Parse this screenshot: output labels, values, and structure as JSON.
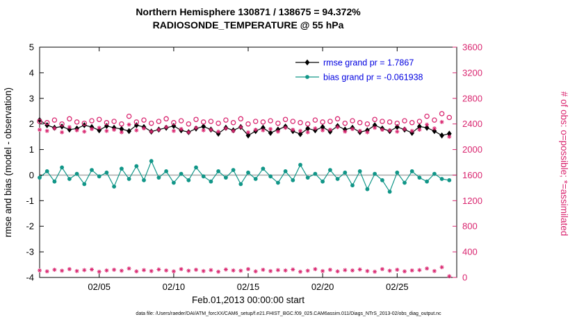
{
  "figure": {
    "title_line1": "Northern Hemisphere 130871 / 138675 = 94.372%",
    "title_line2": "RADIOSONDE_TEMPERATURE @ 55 hPa",
    "footer": "data file: /Users/raeder/DAI/ATM_forcXX/CAM6_setup/f.e21.FHIST_BGC.f09_025.CAM6assim.011/Diags_NTrS_2013-02/obs_diag_output.nc"
  },
  "colors": {
    "rmse": "#000000",
    "bias": "#119688",
    "obs": "#d9256f",
    "legend_text": "#0000e0",
    "zero_line": "#b0b0b0",
    "axis": "#000000"
  },
  "chart_data": {
    "type": "line",
    "title": "Northern Hemisphere 130871 / 138675 = 94.372% | RADIOSONDE_TEMPERATURE @ 55 hPa",
    "xlabel": "Feb.01,2013 00:00:00 start",
    "ylabel_left": "rmse and bias (model - observation)",
    "ylabel_right": "# of obs: o=possible; *=assimilated",
    "ylim_left": [
      -4,
      5
    ],
    "yticks_left": [
      -4,
      -3,
      -2,
      -1,
      0,
      1,
      2,
      3,
      4,
      5
    ],
    "ylim_right": [
      0,
      3600
    ],
    "yticks_right": [
      0,
      400,
      800,
      1200,
      1600,
      2000,
      2400,
      2800,
      3200,
      3600
    ],
    "xlim_days": [
      1,
      29
    ],
    "xticks": [
      {
        "day": 5,
        "label": "02/05"
      },
      {
        "day": 10,
        "label": "02/10"
      },
      {
        "day": 15,
        "label": "02/15"
      },
      {
        "day": 20,
        "label": "02/20"
      },
      {
        "day": 25,
        "label": "02/25"
      }
    ],
    "grand_rmse": 1.7867,
    "grand_bias": -0.061938,
    "x_days": [
      1,
      1.5,
      2,
      2.5,
      3,
      3.5,
      4,
      4.5,
      5,
      5.5,
      6,
      6.5,
      7,
      7.5,
      8,
      8.5,
      9,
      9.5,
      10,
      10.5,
      11,
      11.5,
      12,
      12.5,
      13,
      13.5,
      14,
      14.5,
      15,
      15.5,
      16,
      16.5,
      17,
      17.5,
      18,
      18.5,
      19,
      19.5,
      20,
      20.5,
      21,
      21.5,
      22,
      22.5,
      23,
      23.5,
      24,
      24.5,
      25,
      25.5,
      26,
      26.5,
      27,
      27.5,
      28,
      28.5
    ],
    "series": [
      {
        "name": "rmse",
        "legend": "rmse grand pr = 1.7867",
        "axis": "left",
        "marker": "diamond",
        "line": true,
        "color": "#000000",
        "values": [
          2.15,
          1.95,
          1.85,
          1.9,
          1.78,
          1.82,
          1.95,
          1.88,
          1.75,
          1.92,
          1.85,
          1.8,
          1.72,
          1.95,
          1.88,
          1.7,
          1.78,
          1.85,
          1.92,
          1.75,
          1.68,
          1.82,
          1.9,
          1.78,
          1.62,
          1.85,
          1.75,
          1.88,
          1.55,
          1.72,
          1.85,
          1.65,
          1.78,
          1.9,
          1.72,
          1.6,
          1.82,
          1.75,
          1.88,
          1.7,
          1.92,
          1.78,
          1.85,
          1.68,
          1.75,
          1.95,
          1.82,
          1.72,
          1.88,
          1.78,
          1.65,
          1.9,
          1.85,
          1.72,
          1.55,
          1.62
        ]
      },
      {
        "name": "bias",
        "legend": "bias grand pr = -0.061938",
        "axis": "left",
        "marker": "circle",
        "line": true,
        "color": "#119688",
        "values": [
          -0.1,
          0.15,
          -0.25,
          0.3,
          -0.15,
          0.05,
          -0.35,
          0.2,
          -0.05,
          0.1,
          -0.45,
          0.25,
          -0.15,
          0.35,
          -0.2,
          0.55,
          -0.1,
          0.15,
          -0.3,
          0.05,
          -0.2,
          0.3,
          -0.05,
          -0.25,
          0.15,
          -0.1,
          0.2,
          -0.35,
          0.1,
          -0.15,
          0.25,
          -0.05,
          -0.3,
          0.15,
          -0.2,
          0.4,
          -0.1,
          0.05,
          -0.25,
          0.2,
          -0.15,
          0.1,
          -0.4,
          0.15,
          -0.55,
          0.05,
          -0.2,
          -0.65,
          0.1,
          -0.3,
          0.15,
          -0.1,
          -0.25,
          0.05,
          -0.15,
          -0.2
        ]
      },
      {
        "name": "obs-possible",
        "axis": "right",
        "marker": "ocircle",
        "line": false,
        "color": "#d9256f",
        "values": [
          2440,
          2420,
          2460,
          2400,
          2480,
          2430,
          2410,
          2450,
          2470,
          2420,
          2440,
          2400,
          2520,
          2430,
          2460,
          2410,
          2440,
          2480,
          2420,
          2450,
          2400,
          2470,
          2430,
          2440,
          2410,
          2460,
          2420,
          2480,
          2400,
          2440,
          2430,
          2450,
          2410,
          2470,
          2440,
          2420,
          2400,
          2460,
          2430,
          2440,
          2480,
          2410,
          2450,
          2420,
          2400,
          2470,
          2440,
          2430,
          2410,
          2450,
          2420,
          2440,
          2520,
          2460,
          2560,
          2500
        ]
      },
      {
        "name": "obs-assimilated",
        "axis": "right",
        "marker": "asterisk",
        "line": false,
        "color": "#d9256f",
        "values": [
          2310,
          2290,
          2330,
          2270,
          2350,
          2300,
          2280,
          2320,
          2340,
          2290,
          2310,
          2270,
          2390,
          2300,
          2330,
          2280,
          2310,
          2350,
          2290,
          2320,
          2270,
          2340,
          2300,
          2310,
          2280,
          2330,
          2290,
          2350,
          2270,
          2310,
          2300,
          2320,
          2280,
          2340,
          2310,
          2290,
          2270,
          2330,
          2300,
          2310,
          2350,
          2280,
          2320,
          2290,
          2270,
          2340,
          2310,
          2300,
          2280,
          2320,
          2290,
          2310,
          2390,
          2330,
          2430,
          2200
        ]
      },
      {
        "name": "obs-bottom-row",
        "note": "unlabeled row of magenta markers near zero of right axis",
        "axis": "right",
        "marker": "asterisk",
        "line": false,
        "color": "#d9256f",
        "values": [
          110,
          95,
          120,
          105,
          130,
          100,
          115,
          125,
          90,
          110,
          120,
          105,
          140,
          95,
          115,
          100,
          125,
          110,
          95,
          130,
          105,
          120,
          100,
          115,
          90,
          125,
          110,
          105,
          130,
          95,
          120,
          100,
          115,
          110,
          125,
          90,
          105,
          130,
          100,
          120,
          95,
          115,
          110,
          125,
          100,
          90,
          130,
          105,
          120,
          95,
          110,
          115,
          140,
          100,
          160,
          20
        ]
      }
    ]
  }
}
